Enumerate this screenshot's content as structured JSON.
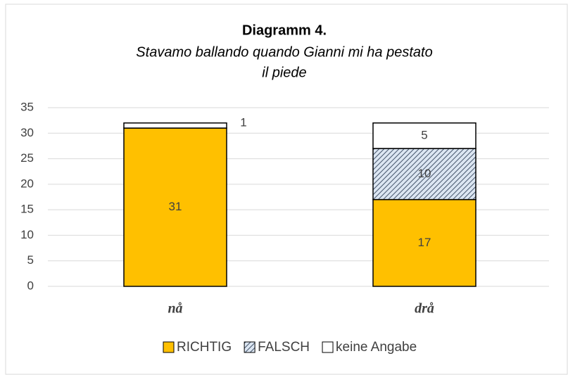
{
  "chart_data": {
    "type": "stacked_bar",
    "title": "Diagramm 4.",
    "subtitle": [
      "Stavamo ballando quando Gianni mi ha pestato",
      "il piede"
    ],
    "categories": [
      "nå",
      "drå"
    ],
    "series": [
      {
        "name": "RICHTIG",
        "color": "#ffc000",
        "values": [
          31,
          17
        ]
      },
      {
        "name": "FALSCH",
        "color": "#44546a",
        "pattern": "hatch",
        "values": [
          0,
          10
        ]
      },
      {
        "name": "keine Angabe",
        "color": "#ffffff",
        "values": [
          1,
          5
        ]
      }
    ],
    "ylim": [
      0,
      35
    ],
    "yticks": [
      0,
      5,
      10,
      15,
      20,
      25,
      30,
      35
    ],
    "grid": true,
    "legend": "bottom"
  }
}
